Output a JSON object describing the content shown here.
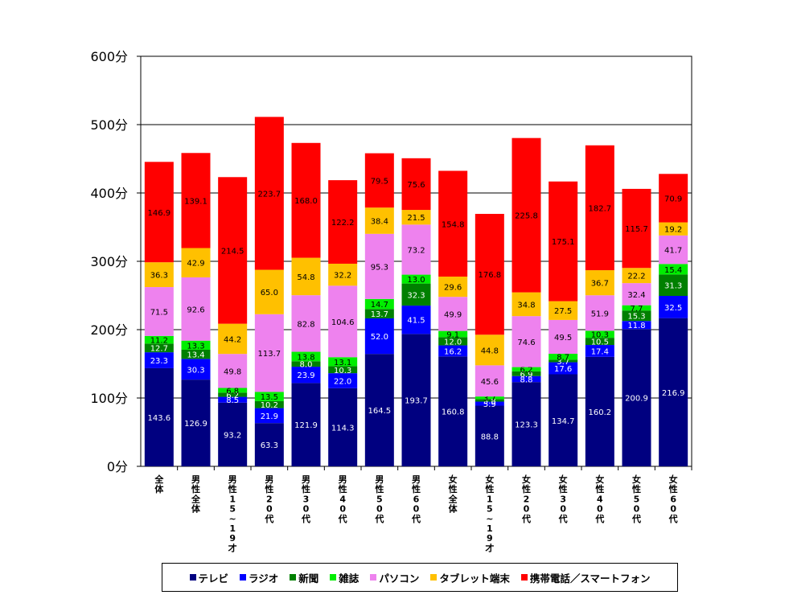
{
  "chart_data": {
    "type": "bar",
    "stacked": true,
    "title": "",
    "xlabel": "",
    "ylabel": "",
    "ylim": [
      0,
      600
    ],
    "y_ticks": [
      "0分",
      "100分",
      "200分",
      "300分",
      "400分",
      "500分",
      "600分"
    ],
    "grid": true,
    "legend_position": "bottom",
    "categories": [
      "全体",
      "男性全体",
      "男性15~19才",
      "男性20代",
      "男性30代",
      "男性40代",
      "男性50代",
      "男性60代",
      "女性全体",
      "女性15~19才",
      "女性20代",
      "女性30代",
      "女性40代",
      "女性50代",
      "女性60代"
    ],
    "series": [
      {
        "name": "テレビ",
        "color": "#000080",
        "label_color": "#ffffff",
        "values": [
          143.6,
          126.9,
          93.2,
          63.3,
          121.9,
          114.3,
          164.5,
          193.7,
          160.8,
          88.8,
          123.3,
          134.7,
          160.2,
          200.9,
          216.9
        ]
      },
      {
        "name": "ラジオ",
        "color": "#0000ff",
        "label_color": "#ffffff",
        "values": [
          23.3,
          30.3,
          8.5,
          21.9,
          23.9,
          22.0,
          52.0,
          41.5,
          16.2,
          5.9,
          8.8,
          17.6,
          17.4,
          11.8,
          32.5
        ]
      },
      {
        "name": "新聞",
        "color": "#008000",
        "label_color": "#ffffff",
        "values": [
          12.7,
          13.4,
          6.2,
          10.2,
          8.0,
          10.3,
          13.7,
          32.3,
          12.0,
          3.8,
          6.9,
          3.7,
          10.5,
          15.3,
          31.3
        ]
      },
      {
        "name": "雑誌",
        "color": "#00ee00",
        "label_color": "#000000",
        "values": [
          11.2,
          13.3,
          6.8,
          13.5,
          13.8,
          13.1,
          14.7,
          13.0,
          9.1,
          3.7,
          6.2,
          8.7,
          10.3,
          7.7,
          15.4
        ]
      },
      {
        "name": "パソコン",
        "color": "#ee82ee",
        "label_color": "#000000",
        "values": [
          71.5,
          92.6,
          49.8,
          113.7,
          82.8,
          104.6,
          95.3,
          73.2,
          49.9,
          45.6,
          74.6,
          49.5,
          51.9,
          32.4,
          41.7
        ]
      },
      {
        "name": "タブレット端末",
        "color": "#ffc000",
        "label_color": "#000000",
        "values": [
          36.3,
          42.9,
          44.2,
          65.0,
          54.8,
          32.2,
          38.4,
          21.5,
          29.6,
          44.8,
          34.8,
          27.5,
          36.7,
          22.2,
          19.2
        ]
      },
      {
        "name": "携帯電話／スマートフォン",
        "color": "#ff0000",
        "label_color": "#000000",
        "values": [
          146.9,
          139.1,
          214.5,
          223.7,
          168.0,
          122.2,
          79.5,
          75.6,
          154.8,
          176.8,
          225.8,
          175.1,
          182.7,
          115.7,
          70.9
        ]
      }
    ]
  }
}
